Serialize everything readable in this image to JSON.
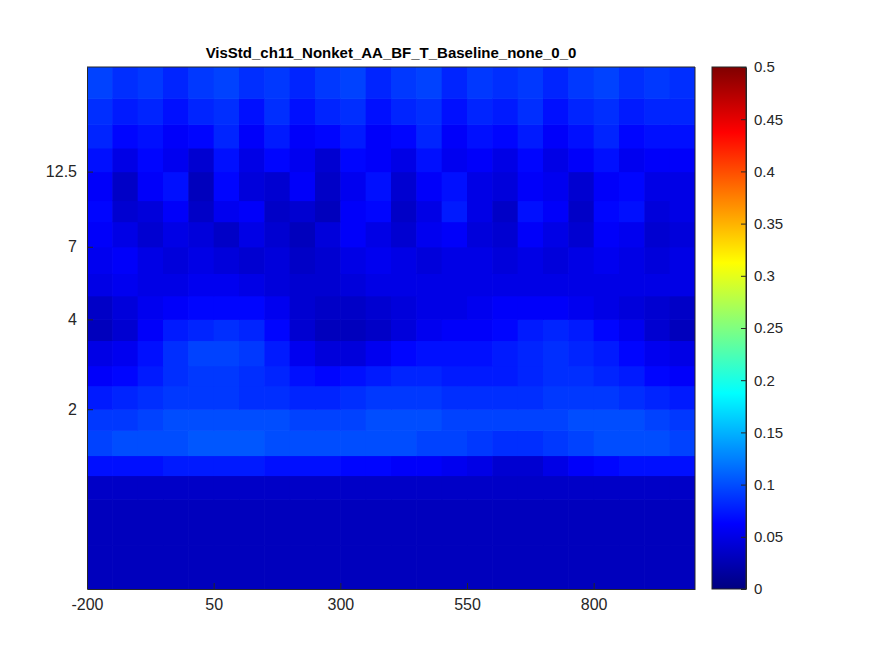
{
  "chart_data": {
    "type": "heatmap",
    "title": "VisStd_ch11_Nonket_AA_BF_T_Baseline_none_0_0",
    "log": "y",
    "color": "jet",
    "xlim": [
      -200,
      1000
    ],
    "xticks": [
      -200,
      50,
      300,
      550,
      800
    ],
    "ylim": [
      0.5,
      28
    ],
    "yticks": [
      2,
      4,
      7,
      12.5
    ],
    "x_edges": [
      -200,
      -150,
      -100,
      -50,
      0,
      50,
      100,
      150,
      200,
      250,
      300,
      350,
      400,
      450,
      500,
      550,
      600,
      650,
      700,
      750,
      800,
      850,
      900,
      950,
      1000
    ],
    "y_edges": [
      0.5,
      0.7,
      1,
      1.2,
      1.4,
      1.7,
      2,
      2.4,
      2.8,
      3.4,
      4,
      4.8,
      5.7,
      7,
      8.5,
      10,
      12.5,
      15,
      18,
      22,
      28
    ],
    "z": [
      [
        0.03,
        0.03,
        0.03,
        0.03,
        0.03,
        0.03,
        0.03,
        0.03,
        0.03,
        0.03,
        0.03,
        0.03,
        0.03,
        0.03,
        0.03,
        0.03,
        0.03,
        0.03,
        0.03,
        0.03,
        0.03,
        0.03,
        0.03,
        0.03
      ],
      [
        0.03,
        0.03,
        0.03,
        0.03,
        0.03,
        0.03,
        0.03,
        0.03,
        0.03,
        0.03,
        0.03,
        0.03,
        0.03,
        0.03,
        0.03,
        0.03,
        0.03,
        0.03,
        0.03,
        0.03,
        0.03,
        0.03,
        0.03,
        0.03
      ],
      [
        0.035,
        0.035,
        0.035,
        0.035,
        0.035,
        0.035,
        0.035,
        0.035,
        0.035,
        0.035,
        0.035,
        0.035,
        0.035,
        0.035,
        0.035,
        0.035,
        0.035,
        0.035,
        0.035,
        0.035,
        0.035,
        0.035,
        0.035,
        0.035
      ],
      [
        0.07,
        0.07,
        0.07,
        0.075,
        0.075,
        0.075,
        0.075,
        0.07,
        0.07,
        0.07,
        0.065,
        0.065,
        0.06,
        0.06,
        0.055,
        0.05,
        0.04,
        0.04,
        0.05,
        0.06,
        0.065,
        0.07,
        0.07,
        0.07
      ],
      [
        0.095,
        0.1,
        0.1,
        0.1,
        0.105,
        0.105,
        0.105,
        0.1,
        0.1,
        0.1,
        0.1,
        0.1,
        0.1,
        0.095,
        0.095,
        0.09,
        0.085,
        0.085,
        0.09,
        0.095,
        0.1,
        0.1,
        0.1,
        0.095
      ],
      [
        0.09,
        0.09,
        0.095,
        0.1,
        0.1,
        0.1,
        0.1,
        0.1,
        0.095,
        0.095,
        0.095,
        0.1,
        0.1,
        0.1,
        0.095,
        0.095,
        0.095,
        0.095,
        0.095,
        0.1,
        0.1,
        0.1,
        0.095,
        0.09
      ],
      [
        0.075,
        0.08,
        0.085,
        0.09,
        0.09,
        0.09,
        0.085,
        0.085,
        0.08,
        0.08,
        0.085,
        0.09,
        0.09,
        0.09,
        0.085,
        0.085,
        0.085,
        0.085,
        0.09,
        0.09,
        0.09,
        0.085,
        0.08,
        0.075
      ],
      [
        0.06,
        0.065,
        0.075,
        0.085,
        0.09,
        0.09,
        0.085,
        0.08,
        0.07,
        0.065,
        0.07,
        0.075,
        0.08,
        0.08,
        0.075,
        0.075,
        0.075,
        0.08,
        0.085,
        0.085,
        0.08,
        0.075,
        0.065,
        0.06
      ],
      [
        0.05,
        0.055,
        0.07,
        0.085,
        0.095,
        0.095,
        0.09,
        0.075,
        0.055,
        0.045,
        0.045,
        0.055,
        0.065,
        0.07,
        0.07,
        0.07,
        0.075,
        0.08,
        0.085,
        0.08,
        0.075,
        0.065,
        0.055,
        0.05
      ],
      [
        0.03,
        0.04,
        0.06,
        0.075,
        0.08,
        0.085,
        0.08,
        0.065,
        0.04,
        0.03,
        0.03,
        0.035,
        0.045,
        0.055,
        0.06,
        0.06,
        0.065,
        0.075,
        0.08,
        0.075,
        0.065,
        0.055,
        0.04,
        0.03
      ],
      [
        0.035,
        0.045,
        0.055,
        0.06,
        0.065,
        0.065,
        0.065,
        0.055,
        0.04,
        0.035,
        0.035,
        0.04,
        0.045,
        0.05,
        0.05,
        0.055,
        0.06,
        0.06,
        0.06,
        0.055,
        0.05,
        0.045,
        0.04,
        0.035
      ],
      [
        0.05,
        0.055,
        0.05,
        0.05,
        0.055,
        0.055,
        0.05,
        0.045,
        0.04,
        0.04,
        0.045,
        0.05,
        0.05,
        0.05,
        0.05,
        0.05,
        0.05,
        0.05,
        0.05,
        0.05,
        0.05,
        0.05,
        0.05,
        0.05
      ],
      [
        0.055,
        0.06,
        0.05,
        0.045,
        0.05,
        0.045,
        0.04,
        0.045,
        0.035,
        0.04,
        0.05,
        0.055,
        0.05,
        0.045,
        0.05,
        0.05,
        0.045,
        0.05,
        0.045,
        0.05,
        0.055,
        0.05,
        0.045,
        0.05
      ],
      [
        0.06,
        0.05,
        0.04,
        0.05,
        0.045,
        0.035,
        0.05,
        0.04,
        0.03,
        0.045,
        0.06,
        0.05,
        0.04,
        0.055,
        0.06,
        0.045,
        0.04,
        0.06,
        0.05,
        0.04,
        0.06,
        0.055,
        0.04,
        0.045
      ],
      [
        0.065,
        0.04,
        0.045,
        0.06,
        0.035,
        0.055,
        0.06,
        0.035,
        0.04,
        0.03,
        0.06,
        0.065,
        0.035,
        0.05,
        0.075,
        0.05,
        0.035,
        0.07,
        0.06,
        0.035,
        0.065,
        0.07,
        0.045,
        0.05
      ],
      [
        0.06,
        0.035,
        0.06,
        0.07,
        0.03,
        0.065,
        0.045,
        0.04,
        0.06,
        0.035,
        0.055,
        0.07,
        0.04,
        0.06,
        0.07,
        0.05,
        0.045,
        0.06,
        0.055,
        0.04,
        0.06,
        0.065,
        0.05,
        0.05
      ],
      [
        0.07,
        0.05,
        0.065,
        0.055,
        0.04,
        0.07,
        0.05,
        0.065,
        0.055,
        0.04,
        0.065,
        0.06,
        0.05,
        0.07,
        0.055,
        0.06,
        0.05,
        0.065,
        0.05,
        0.06,
        0.07,
        0.055,
        0.06,
        0.06
      ],
      [
        0.08,
        0.065,
        0.07,
        0.06,
        0.065,
        0.08,
        0.06,
        0.075,
        0.06,
        0.065,
        0.075,
        0.06,
        0.065,
        0.08,
        0.06,
        0.07,
        0.065,
        0.075,
        0.06,
        0.07,
        0.08,
        0.065,
        0.07,
        0.07
      ],
      [
        0.085,
        0.075,
        0.08,
        0.07,
        0.08,
        0.085,
        0.07,
        0.085,
        0.07,
        0.08,
        0.085,
        0.07,
        0.08,
        0.085,
        0.07,
        0.08,
        0.075,
        0.085,
        0.07,
        0.08,
        0.085,
        0.075,
        0.08,
        0.08
      ],
      [
        0.095,
        0.085,
        0.09,
        0.08,
        0.09,
        0.095,
        0.085,
        0.09,
        0.08,
        0.09,
        0.095,
        0.08,
        0.09,
        0.095,
        0.08,
        0.09,
        0.085,
        0.09,
        0.08,
        0.09,
        0.095,
        0.085,
        0.09,
        0.085
      ]
    ],
    "colorbar": {
      "range": [
        0,
        0.5
      ],
      "ticks": [
        0,
        0.05,
        0.1,
        0.15,
        0.2,
        0.25,
        0.3,
        0.35,
        0.4,
        0.45,
        0.5
      ]
    }
  }
}
